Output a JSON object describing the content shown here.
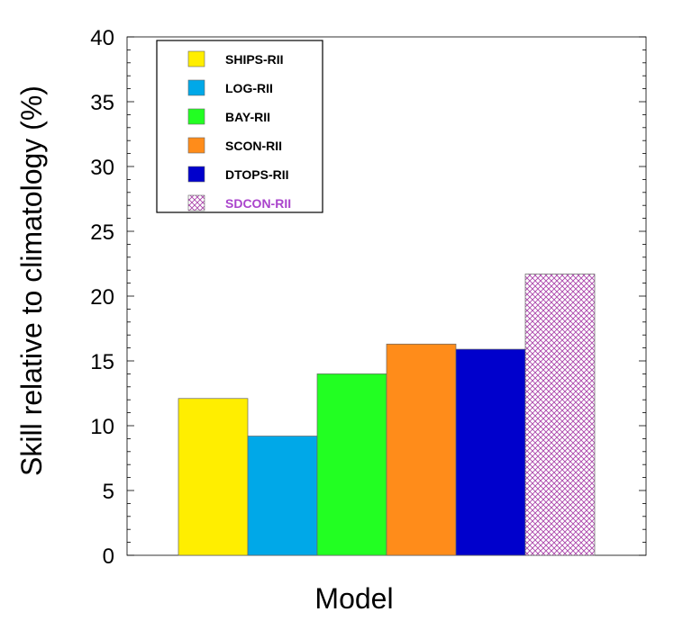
{
  "chart_data": {
    "type": "bar",
    "xlabel": "Model",
    "ylabel": "Skill relative to climatology (%)",
    "ylim": [
      0,
      40
    ],
    "yticks": [
      0,
      5,
      10,
      15,
      20,
      25,
      30,
      35,
      40
    ],
    "grid": false,
    "legend_position": "top-left",
    "series": [
      {
        "name": "SHIPS-RII",
        "value": 12.1,
        "color": "#ffee00",
        "pattern": "solid",
        "label_color": "#000000"
      },
      {
        "name": "LOG-RII",
        "value": 9.2,
        "color": "#00a8e8",
        "pattern": "solid",
        "label_color": "#000000"
      },
      {
        "name": "BAY-RII",
        "value": 14.0,
        "color": "#22ff22",
        "pattern": "solid",
        "label_color": "#000000"
      },
      {
        "name": "SCON-RII",
        "value": 16.3,
        "color": "#ff8c1a",
        "pattern": "solid",
        "label_color": "#000000"
      },
      {
        "name": "DTOPS-RII",
        "value": 15.9,
        "color": "#0000cc",
        "pattern": "solid",
        "label_color": "#000000"
      },
      {
        "name": "SDCON-RII",
        "value": 21.7,
        "color": "#aa44aa",
        "pattern": "crosshatch",
        "label_color": "#aa44cc"
      }
    ]
  }
}
